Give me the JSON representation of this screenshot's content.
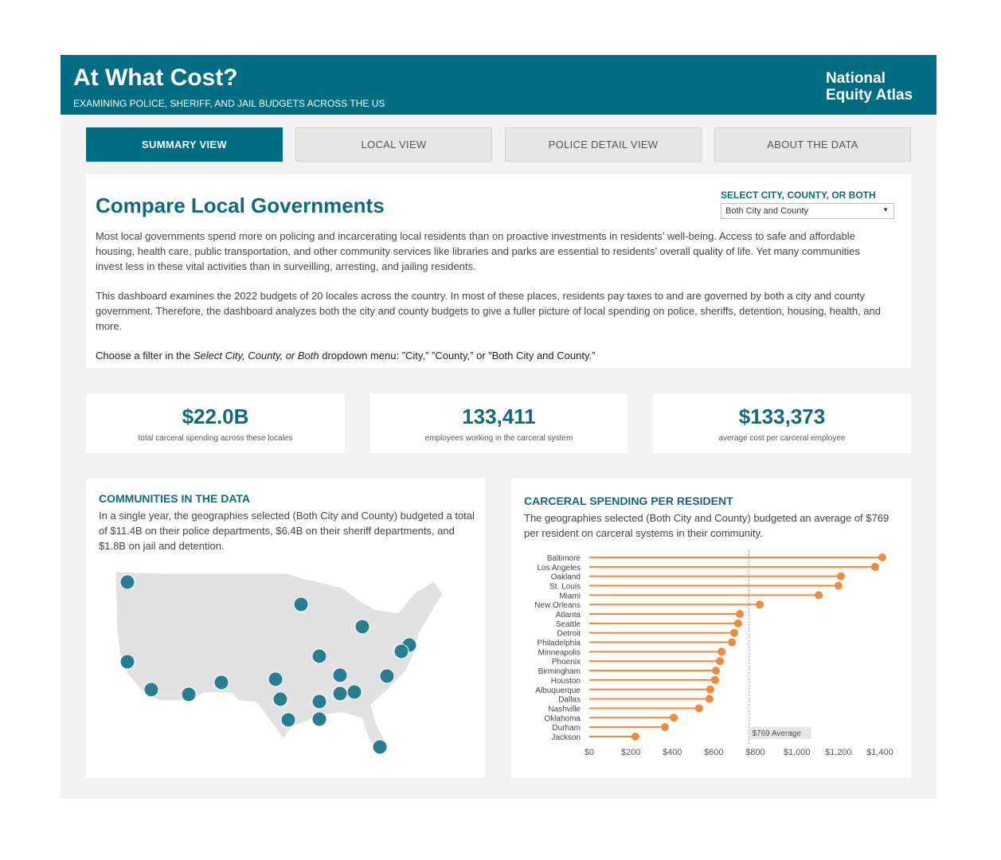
{
  "header": {
    "title": "At What Cost?",
    "subtitle": "EXAMINING POLICE, SHERIFF, AND JAIL BUDGETS ACROSS THE US",
    "logo": [
      "National",
      "Equity Atlas"
    ]
  },
  "tabs": [
    "SUMMARY VIEW",
    "LOCAL VIEW",
    "POLICE DETAIL VIEW",
    "ABOUT THE DATA"
  ],
  "intro": {
    "title": "Compare Local Governments",
    "filter_label": "SELECT CITY, COUNTY, OR BOTH",
    "filter_value": "Both City and County",
    "para1": "Most local governments spend more on policing and incarcerating local residents than on proactive investments in residents’ well-being. Access to safe and affordable housing, health care, public transportation, and other community services like libraries and parks are essential to residents’ overall quality of life. Yet many communities invest less in these vital activities than in surveilling, arresting, and jailing residents.",
    "para2": "This dashboard examines the 2022 budgets of 20 locales across the country. In most of these places, residents pay taxes to and are governed by both a city and county government. Therefore, the dashboard analyzes both the city and county budgets to give a fuller picture of local spending on police, sheriffs, detention, housing, health, and more.",
    "para3": [
      "Choose a filter in the ",
      "Select City, County, or Both",
      " dropdown menu: ”City,” ”County,” or ”Both City and County.”"
    ]
  },
  "kpis": [
    {
      "value": "$22.0B",
      "label": "total carceral spending across these locales"
    },
    {
      "value": "133,411",
      "label": "employees working in the carceral system"
    },
    {
      "value": "$133,373",
      "label": "average cost per carceral employee"
    }
  ],
  "map": {
    "title": "COMMUNITIES IN THE DATA",
    "text": "In a single year, the geographies selected (Both City and County) budgeted a total of $11.4B on their police departments, $6.4B on their sheriff departments, and $1.8B on jail and detention."
  },
  "chart_data": {
    "type": "lollipop",
    "title": "CARCERAL SPENDING PER RESIDENT",
    "subtitle": "The geographies selected (Both City and County) budgeted an average of $769 per resident on carceral systems in their community.",
    "categories": [
      "Baltimore",
      "Los Angeles",
      "Oakland",
      "St. Louis",
      "Miami",
      "New Orleans",
      "Atlanta",
      "Seattle",
      "Detroit",
      "Philadelphia",
      "Minneapolis",
      "Phoenix",
      "Birmingham",
      "Houston",
      "Albuquerque",
      "Dallas",
      "Nashville",
      "Oklahoma",
      "Durham",
      "Jackson"
    ],
    "values": [
      1411,
      1377,
      1212,
      1200,
      1105,
      821,
      725,
      717,
      698,
      687,
      637,
      629,
      610,
      606,
      583,
      579,
      529,
      407,
      364,
      222
    ],
    "color": "#f28a3a",
    "average": {
      "value": 769,
      "label": "$769 Average"
    },
    "xlim": [
      0,
      1450
    ],
    "xticks": [
      {
        "value": 0,
        "label": "$0"
      },
      {
        "value": 200,
        "label": "$200"
      },
      {
        "value": 400,
        "label": "$400"
      },
      {
        "value": 600,
        "label": "$600"
      },
      {
        "value": 800,
        "label": "$800"
      },
      {
        "value": 1000,
        "label": "$1,000"
      },
      {
        "value": 1200,
        "label": "$1,200"
      },
      {
        "value": 1400,
        "label": "$1,400"
      }
    ]
  }
}
